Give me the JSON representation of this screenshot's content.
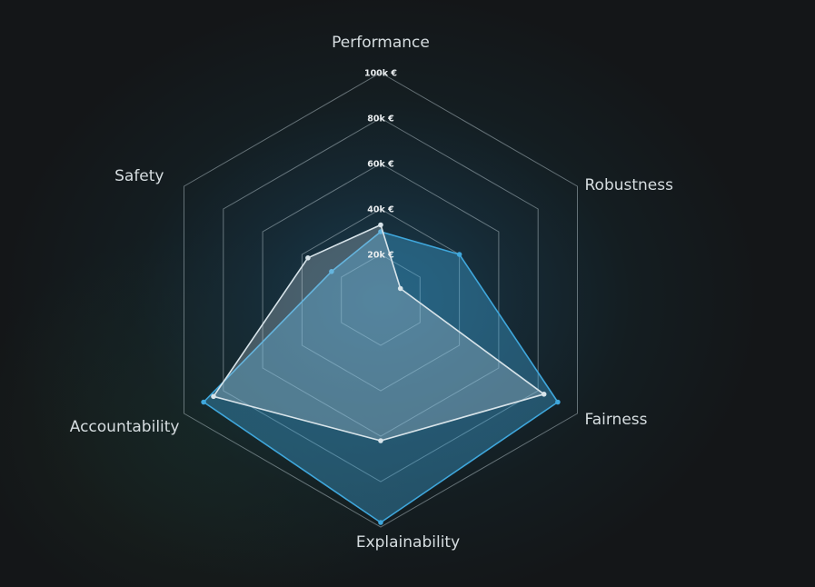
{
  "chart_data": {
    "type": "radar",
    "title": "",
    "axes": [
      "Performance",
      "Robustness",
      "Fairness",
      "Explainability",
      "Accountability",
      "Safety"
    ],
    "range": [
      0,
      100000
    ],
    "ticks": [
      {
        "value": 20000,
        "label": "20k €"
      },
      {
        "value": 40000,
        "label": "40k €"
      },
      {
        "value": 60000,
        "label": "60k €"
      },
      {
        "value": 80000,
        "label": "80k €"
      },
      {
        "value": 100000,
        "label": "100k €"
      }
    ],
    "grid": true,
    "legend": "none",
    "series": [
      {
        "values": [
          30000,
          40000,
          90000,
          98000,
          90000,
          25000
        ],
        "color": "#3fa7dc",
        "fill": "rgba(63,167,220,0.38)"
      },
      {
        "values": [
          33000,
          10000,
          83000,
          62000,
          85000,
          37000
        ],
        "color": "#d8e4ea",
        "fill": "rgba(200,215,225,0.28)"
      }
    ]
  }
}
